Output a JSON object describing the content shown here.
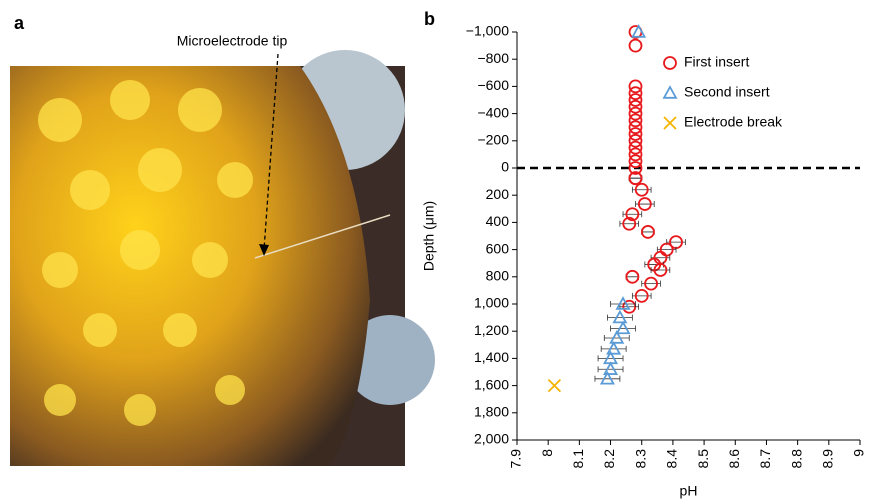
{
  "panel_labels": [
    "a",
    "b"
  ],
  "photo_annotation": "Microelectrode tip",
  "chart_data": {
    "type": "scatter",
    "xlabel": "pH",
    "ylabel": "Depth (μm)",
    "xlim": [
      7.9,
      9
    ],
    "ylim": [
      2000,
      -1000
    ],
    "xticks": [
      7.9,
      8,
      8.1,
      8.2,
      8.3,
      8.4,
      8.5,
      8.6,
      8.7,
      8.8,
      8.9,
      9
    ],
    "yticks": [
      {
        "value": -1000,
        "label": "−1,000"
      },
      {
        "value": -800,
        "label": "−800"
      },
      {
        "value": -600,
        "label": "−600"
      },
      {
        "value": -400,
        "label": "−400"
      },
      {
        "value": -200,
        "label": "−200"
      },
      0,
      200,
      400,
      600,
      800,
      {
        "value": 1000,
        "label": "1,000"
      },
      {
        "value": 1200,
        "label": "1,200"
      },
      {
        "value": 1400,
        "label": "1,400"
      },
      {
        "value": 1600,
        "label": "1,600"
      },
      {
        "value": 1800,
        "label": "1,800"
      },
      {
        "value": 2000,
        "label": "2,000"
      }
    ],
    "reference_line_y": 0,
    "legend": "upper right",
    "series": [
      {
        "name": "First insert",
        "color": "#e8191c",
        "marker": "circle",
        "x": [
          8.28,
          8.28,
          8.28,
          8.28,
          8.28,
          8.28,
          8.28,
          8.28,
          8.28,
          8.28,
          8.28,
          8.28,
          8.28,
          8.28,
          8.28,
          8.28,
          8.28,
          8.3,
          8.31,
          8.27,
          8.26,
          8.32,
          8.41,
          8.38,
          8.36,
          8.34,
          8.36,
          8.27,
          8.33,
          8.3,
          8.26
        ],
        "y": [
          -1000,
          -900,
          -600,
          -550,
          -500,
          -450,
          -400,
          -350,
          -300,
          -250,
          -200,
          -150,
          -100,
          -50,
          0,
          75,
          75,
          160,
          265,
          340,
          410,
          470,
          545,
          600,
          660,
          710,
          750,
          800,
          850,
          940,
          1020
        ],
        "xerr": [
          0,
          0,
          0,
          0,
          0,
          0,
          0,
          0,
          0,
          0,
          0,
          0,
          0,
          0,
          0,
          0.02,
          0.02,
          0.03,
          0.03,
          0.03,
          0.03,
          0.02,
          0.03,
          0.03,
          0.03,
          0.03,
          0.03,
          0.02,
          0.03,
          0.03,
          0.03
        ]
      },
      {
        "name": "Second insert",
        "color": "#5b9bd5",
        "marker": "triangle",
        "x": [
          8.29,
          8.24,
          8.23,
          8.24,
          8.22,
          8.21,
          8.2,
          8.2,
          8.19
        ],
        "y": [
          -1000,
          1000,
          1100,
          1180,
          1250,
          1330,
          1400,
          1480,
          1550
        ],
        "xerr": [
          0,
          0.04,
          0.04,
          0.04,
          0.04,
          0.04,
          0.04,
          0.04,
          0.04
        ]
      },
      {
        "name": "Electrode break",
        "color": "#f5b400",
        "marker": "x",
        "x": [
          8.02
        ],
        "y": [
          1600
        ],
        "xerr": [
          0
        ]
      }
    ]
  }
}
